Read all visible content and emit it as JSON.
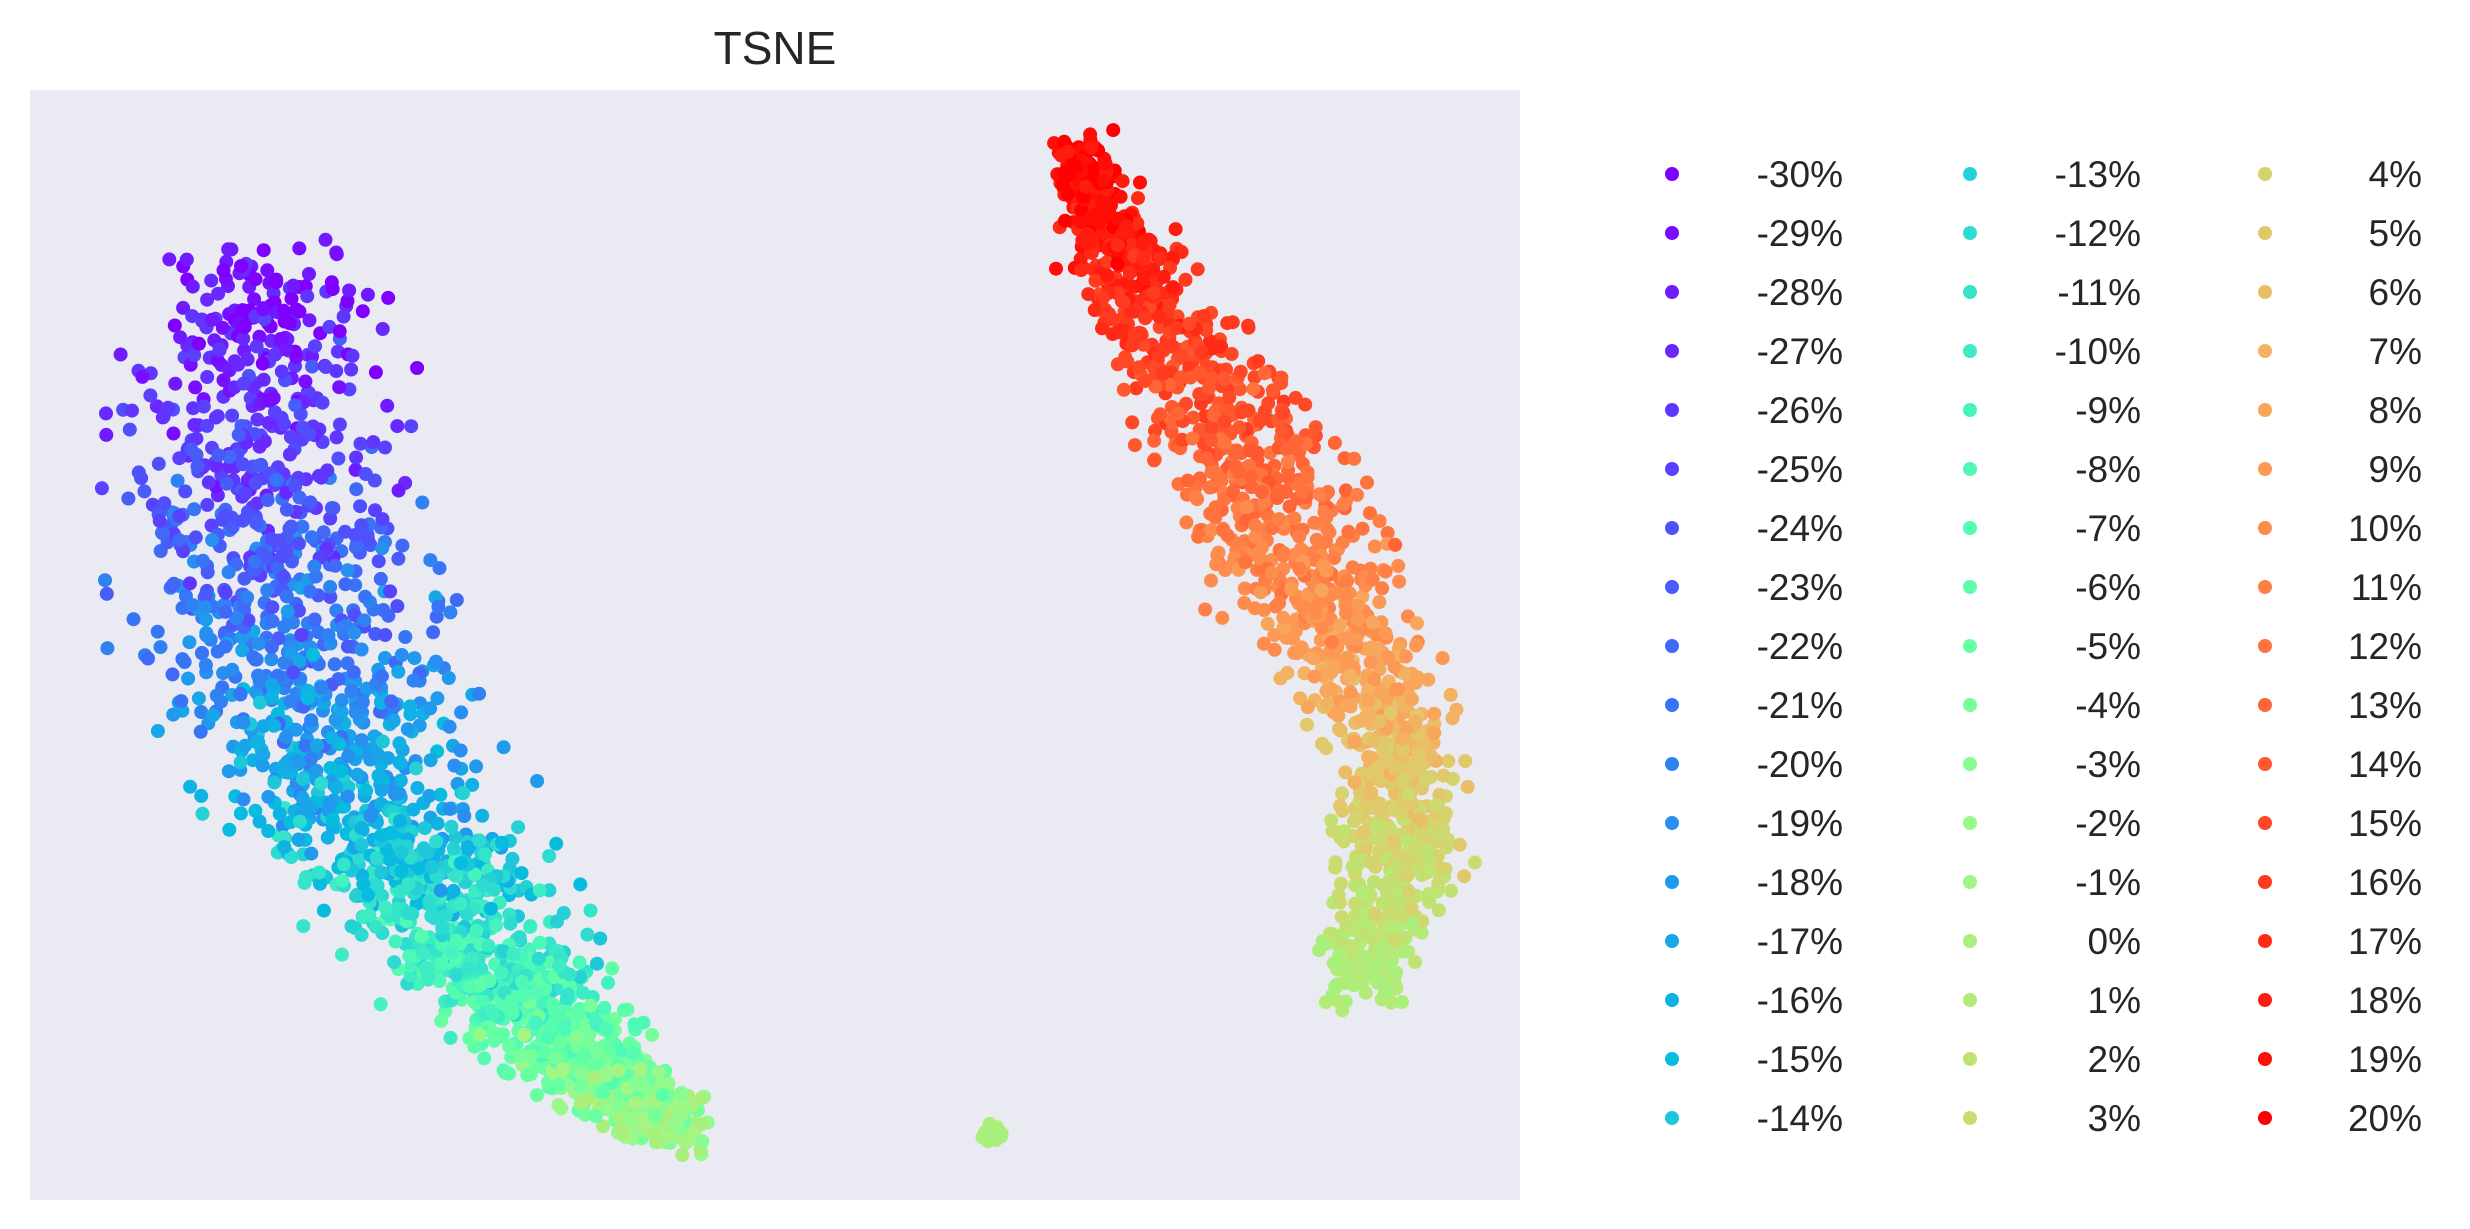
{
  "chart_data": {
    "type": "scatter",
    "title": "TSNE",
    "xlabel": "",
    "ylabel": "",
    "axes_visible": false,
    "grid": false,
    "background_color": "#eaeaf2",
    "colormap": "rainbow",
    "legend": {
      "placement": "outside-right",
      "columns": 3,
      "entries": [
        {
          "label": "-30%",
          "color": "#8000ff"
        },
        {
          "label": "-29%",
          "color": "#780dff"
        },
        {
          "label": "-28%",
          "color": "#701bff"
        },
        {
          "label": "-27%",
          "color": "#6828fe"
        },
        {
          "label": "-26%",
          "color": "#6035fe"
        },
        {
          "label": "-25%",
          "color": "#5842fd"
        },
        {
          "label": "-24%",
          "color": "#504ffc"
        },
        {
          "label": "-23%",
          "color": "#485cfa"
        },
        {
          "label": "-22%",
          "color": "#4069f8"
        },
        {
          "label": "-21%",
          "color": "#3875f6"
        },
        {
          "label": "-20%",
          "color": "#3082f3"
        },
        {
          "label": "-19%",
          "color": "#288ef0"
        },
        {
          "label": "-18%",
          "color": "#209aec"
        },
        {
          "label": "-17%",
          "color": "#18a6e8"
        },
        {
          "label": "-16%",
          "color": "#10b1e4"
        },
        {
          "label": "-15%",
          "color": "#08bcdf"
        },
        {
          "label": "-14%",
          "color": "#1ec6da"
        },
        {
          "label": "-13%",
          "color": "#26d1d5"
        },
        {
          "label": "-12%",
          "color": "#2edbd0"
        },
        {
          "label": "-11%",
          "color": "#36e4ca"
        },
        {
          "label": "-10%",
          "color": "#3eecc4"
        },
        {
          "label": "-9%",
          "color": "#46f3be"
        },
        {
          "label": "-8%",
          "color": "#4ef8b7"
        },
        {
          "label": "-7%",
          "color": "#56fbb0"
        },
        {
          "label": "-6%",
          "color": "#5efea9"
        },
        {
          "label": "-5%",
          "color": "#66ffa2"
        },
        {
          "label": "-4%",
          "color": "#76fe9b"
        },
        {
          "label": "-3%",
          "color": "#86fc93"
        },
        {
          "label": "-2%",
          "color": "#96f98b"
        },
        {
          "label": "-1%",
          "color": "#a4f584"
        },
        {
          "label": "0%",
          "color": "#a8f07b"
        },
        {
          "label": "1%",
          "color": "#b4ea76"
        },
        {
          "label": "2%",
          "color": "#c0e271"
        },
        {
          "label": "3%",
          "color": "#cbdb6f"
        },
        {
          "label": "4%",
          "color": "#d6d26e"
        },
        {
          "label": "5%",
          "color": "#e1c86b"
        },
        {
          "label": "6%",
          "color": "#eabd67"
        },
        {
          "label": "7%",
          "color": "#f3b262"
        },
        {
          "label": "8%",
          "color": "#f8a65c"
        },
        {
          "label": "9%",
          "color": "#fc9a55"
        },
        {
          "label": "10%",
          "color": "#fe8d4d"
        },
        {
          "label": "11%",
          "color": "#ff8046"
        },
        {
          "label": "12%",
          "color": "#ff733e"
        },
        {
          "label": "13%",
          "color": "#ff6536"
        },
        {
          "label": "14%",
          "color": "#ff572e"
        },
        {
          "label": "15%",
          "color": "#ff4826"
        },
        {
          "label": "16%",
          "color": "#ff3a1f"
        },
        {
          "label": "17%",
          "color": "#ff2b17"
        },
        {
          "label": "18%",
          "color": "#ff1c0f"
        },
        {
          "label": "19%",
          "color": "#ff0e08"
        },
        {
          "label": "20%",
          "color": "#ff0000"
        }
      ]
    },
    "clusters": [
      {
        "name": "left",
        "value_range": [
          -30,
          0
        ],
        "approx_points": 2200
      },
      {
        "name": "right",
        "value_range": [
          0,
          20
        ],
        "approx_points": 1500
      },
      {
        "name": "small",
        "value_range": [
          0,
          0
        ],
        "approx_points": 40
      }
    ]
  }
}
